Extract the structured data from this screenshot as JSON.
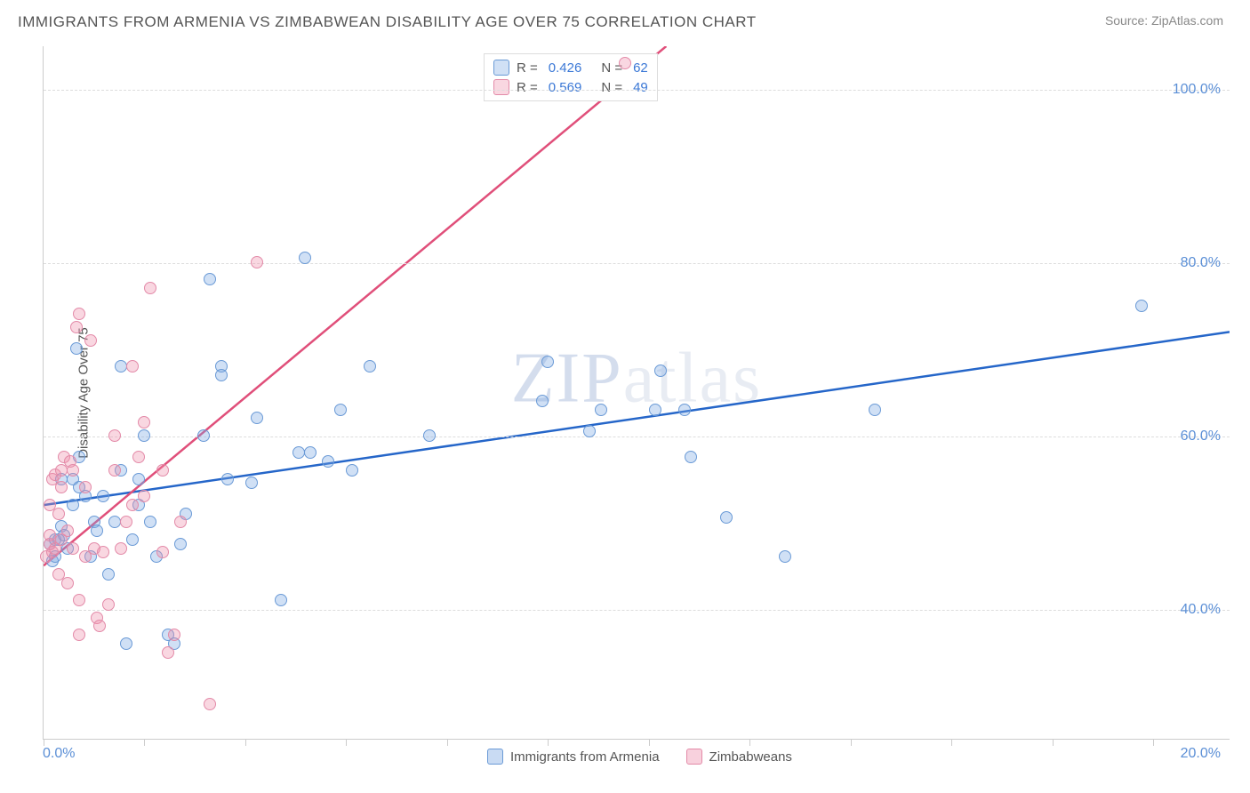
{
  "title": "IMMIGRANTS FROM ARMENIA VS ZIMBABWEAN DISABILITY AGE OVER 75 CORRELATION CHART",
  "source": "Source: ZipAtlas.com",
  "watermark": "ZIPatlas",
  "chart": {
    "type": "scatter",
    "ylabel": "Disability Age Over 75",
    "xlim": [
      0,
      20
    ],
    "ylim": [
      25,
      105
    ],
    "xtick_positions_pct": [
      0,
      8.5,
      17,
      25.5,
      34,
      42.5,
      51,
      59.5,
      68,
      76.5,
      85,
      93.5
    ],
    "x_first_tick_label": "0.0%",
    "x_last_tick_label": "20.0%",
    "ygrid": [
      {
        "value": 40,
        "label": "40.0%"
      },
      {
        "value": 60,
        "label": "60.0%"
      },
      {
        "value": 80,
        "label": "80.0%"
      },
      {
        "value": 100,
        "label": "100.0%"
      }
    ],
    "background_color": "#ffffff",
    "grid_color": "#dddddd",
    "axis_color": "#cccccc",
    "label_color": "#5b8fd6",
    "title_color": "#555555",
    "series": [
      {
        "name": "Immigrants from Armenia",
        "marker_fill": "rgba(120, 165, 225, 0.35)",
        "marker_stroke": "#6a9ad6",
        "line_color": "#2566c9",
        "line_width": 2.5,
        "r": 0.426,
        "n": 62,
        "trend": {
          "x1": 0,
          "y1": 52,
          "x2": 20,
          "y2": 72
        },
        "points": [
          [
            0.1,
            47.5
          ],
          [
            0.15,
            45.5
          ],
          [
            0.2,
            46
          ],
          [
            0.2,
            48
          ],
          [
            0.25,
            48
          ],
          [
            0.3,
            49.5
          ],
          [
            0.3,
            55
          ],
          [
            0.35,
            48.5
          ],
          [
            0.4,
            47
          ],
          [
            0.5,
            52
          ],
          [
            0.5,
            55
          ],
          [
            0.55,
            70
          ],
          [
            0.6,
            54
          ],
          [
            0.6,
            57.5
          ],
          [
            0.7,
            53
          ],
          [
            0.8,
            46
          ],
          [
            0.85,
            50
          ],
          [
            0.9,
            49
          ],
          [
            1.0,
            53
          ],
          [
            1.1,
            44
          ],
          [
            1.2,
            50
          ],
          [
            1.3,
            68
          ],
          [
            1.3,
            56
          ],
          [
            1.4,
            36
          ],
          [
            1.5,
            48
          ],
          [
            1.6,
            52
          ],
          [
            1.6,
            55
          ],
          [
            1.7,
            60
          ],
          [
            1.8,
            50
          ],
          [
            1.9,
            46
          ],
          [
            2.1,
            37
          ],
          [
            2.2,
            36
          ],
          [
            2.3,
            47.5
          ],
          [
            2.4,
            51
          ],
          [
            2.7,
            60
          ],
          [
            2.8,
            78
          ],
          [
            3.0,
            68
          ],
          [
            3.0,
            67
          ],
          [
            3.1,
            55
          ],
          [
            3.5,
            54.5
          ],
          [
            3.6,
            62
          ],
          [
            4.0,
            41
          ],
          [
            4.3,
            58
          ],
          [
            4.4,
            80.5
          ],
          [
            4.5,
            58
          ],
          [
            4.8,
            57
          ],
          [
            5.0,
            63
          ],
          [
            5.2,
            56
          ],
          [
            5.5,
            68
          ],
          [
            6.5,
            60
          ],
          [
            8.4,
            64
          ],
          [
            8.5,
            68.5
          ],
          [
            9.2,
            60.5
          ],
          [
            9.4,
            63
          ],
          [
            10.3,
            63
          ],
          [
            10.4,
            67.5
          ],
          [
            10.8,
            63
          ],
          [
            10.9,
            57.5
          ],
          [
            11.5,
            50.5
          ],
          [
            12.5,
            46
          ],
          [
            14.0,
            63
          ],
          [
            18.5,
            75
          ]
        ]
      },
      {
        "name": "Zimbabweans",
        "marker_fill": "rgba(238, 140, 170, 0.35)",
        "marker_stroke": "#e38aa8",
        "line_color": "#e04f7a",
        "line_width": 2.5,
        "r": 0.569,
        "n": 49,
        "trend": {
          "x1": 0,
          "y1": 45,
          "x2": 10.5,
          "y2": 105
        },
        "points": [
          [
            0.05,
            46
          ],
          [
            0.1,
            47.5
          ],
          [
            0.1,
            48.5
          ],
          [
            0.1,
            52
          ],
          [
            0.15,
            46.5
          ],
          [
            0.15,
            55
          ],
          [
            0.2,
            47
          ],
          [
            0.2,
            55.5
          ],
          [
            0.25,
            44
          ],
          [
            0.25,
            51
          ],
          [
            0.3,
            48
          ],
          [
            0.3,
            54
          ],
          [
            0.3,
            56
          ],
          [
            0.35,
            57.5
          ],
          [
            0.4,
            43
          ],
          [
            0.4,
            49
          ],
          [
            0.45,
            57
          ],
          [
            0.5,
            47
          ],
          [
            0.5,
            56
          ],
          [
            0.55,
            72.5
          ],
          [
            0.6,
            37
          ],
          [
            0.6,
            41
          ],
          [
            0.6,
            74
          ],
          [
            0.7,
            46
          ],
          [
            0.7,
            54
          ],
          [
            0.8,
            71
          ],
          [
            0.85,
            47
          ],
          [
            0.9,
            39
          ],
          [
            0.95,
            38
          ],
          [
            1.0,
            46.5
          ],
          [
            1.1,
            40.5
          ],
          [
            1.2,
            56
          ],
          [
            1.2,
            60
          ],
          [
            1.3,
            47
          ],
          [
            1.4,
            50
          ],
          [
            1.5,
            52
          ],
          [
            1.5,
            68
          ],
          [
            1.6,
            57.5
          ],
          [
            1.7,
            53
          ],
          [
            1.7,
            61.5
          ],
          [
            1.8,
            77
          ],
          [
            2.0,
            46.5
          ],
          [
            2.0,
            56
          ],
          [
            2.1,
            35
          ],
          [
            2.2,
            37
          ],
          [
            2.3,
            50
          ],
          [
            2.8,
            29
          ],
          [
            3.6,
            80
          ],
          [
            9.8,
            103
          ]
        ]
      }
    ]
  },
  "legend_bottom": [
    {
      "label": "Immigrants from Armenia",
      "swatch_fill": "rgba(120,165,225,0.4)",
      "swatch_stroke": "#6a9ad6"
    },
    {
      "label": "Zimbabweans",
      "swatch_fill": "rgba(238,140,170,0.4)",
      "swatch_stroke": "#e38aa8"
    }
  ]
}
